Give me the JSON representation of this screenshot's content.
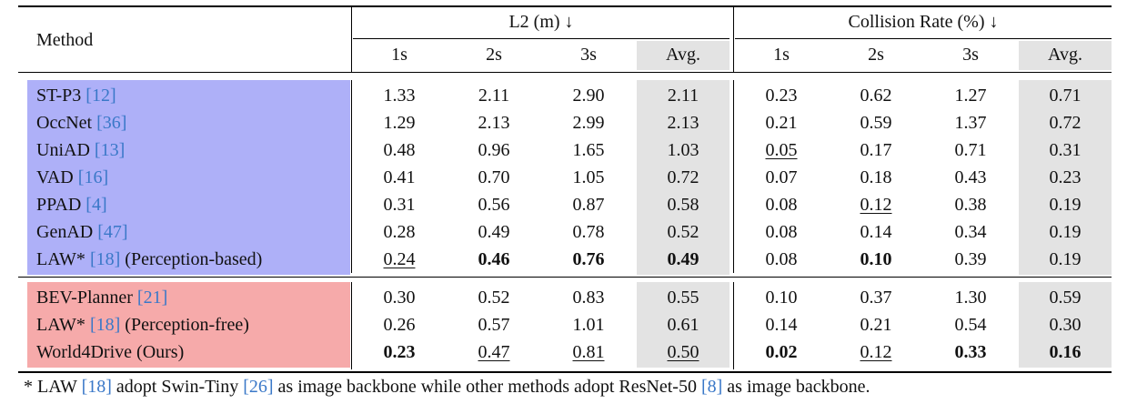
{
  "header": {
    "method_label": "Method",
    "group_l2": "L2 (m) ↓",
    "group_collision": "Collision Rate (%) ↓",
    "subcols": [
      "1s",
      "2s",
      "3s",
      "Avg.",
      "1s",
      "2s",
      "3s",
      "Avg."
    ]
  },
  "colors": {
    "perception_based_bg": "#aeb0f8",
    "perception_free_bg": "#f6aaaa",
    "avg_column_bg": "#e3e3e3",
    "citation_color": "#3a78c8"
  },
  "groups": [
    {
      "name": "perception-based",
      "rows": [
        {
          "method": "ST-P3",
          "cite": "12",
          "suffix": "",
          "values": [
            "1.33",
            "2.11",
            "2.90",
            "2.11",
            "0.23",
            "0.62",
            "1.27",
            "0.71"
          ],
          "bold": [],
          "underline": []
        },
        {
          "method": "OccNet",
          "cite": "36",
          "suffix": "",
          "values": [
            "1.29",
            "2.13",
            "2.99",
            "2.13",
            "0.21",
            "0.59",
            "1.37",
            "0.72"
          ],
          "bold": [],
          "underline": []
        },
        {
          "method": "UniAD",
          "cite": "13",
          "suffix": "",
          "values": [
            "0.48",
            "0.96",
            "1.65",
            "1.03",
            "0.05",
            "0.17",
            "0.71",
            "0.31"
          ],
          "bold": [],
          "underline": [
            4
          ]
        },
        {
          "method": "VAD",
          "cite": "16",
          "suffix": "",
          "values": [
            "0.41",
            "0.70",
            "1.05",
            "0.72",
            "0.07",
            "0.18",
            "0.43",
            "0.23"
          ],
          "bold": [],
          "underline": []
        },
        {
          "method": "PPAD",
          "cite": "4",
          "suffix": "",
          "values": [
            "0.31",
            "0.56",
            "0.87",
            "0.58",
            "0.08",
            "0.12",
            "0.38",
            "0.19"
          ],
          "bold": [],
          "underline": [
            5
          ]
        },
        {
          "method": "GenAD",
          "cite": "47",
          "suffix": "",
          "values": [
            "0.28",
            "0.49",
            "0.78",
            "0.52",
            "0.08",
            "0.14",
            "0.34",
            "0.19"
          ],
          "bold": [],
          "underline": []
        },
        {
          "method": "LAW*",
          "cite": "18",
          "suffix": " (Perception-based)",
          "values": [
            "0.24",
            "0.46",
            "0.76",
            "0.49",
            "0.08",
            "0.10",
            "0.39",
            "0.19"
          ],
          "bold": [
            1,
            2,
            3,
            5
          ],
          "underline": [
            0
          ]
        }
      ]
    },
    {
      "name": "perception-free",
      "rows": [
        {
          "method": "BEV-Planner",
          "cite": "21",
          "suffix": "",
          "values": [
            "0.30",
            "0.52",
            "0.83",
            "0.55",
            "0.10",
            "0.37",
            "1.30",
            "0.59"
          ],
          "bold": [],
          "underline": []
        },
        {
          "method": "LAW*",
          "cite": "18",
          "suffix": " (Perception-free)",
          "values": [
            "0.26",
            "0.57",
            "1.01",
            "0.61",
            "0.14",
            "0.21",
            "0.54",
            "0.30"
          ],
          "bold": [],
          "underline": []
        },
        {
          "method": "World4Drive (Ours)",
          "cite": "",
          "suffix": "",
          "values": [
            "0.23",
            "0.47",
            "0.81",
            "0.50",
            "0.02",
            "0.12",
            "0.33",
            "0.16"
          ],
          "bold": [
            0,
            4,
            6,
            7
          ],
          "underline": [
            1,
            2,
            3,
            5
          ]
        }
      ]
    }
  ],
  "footnote": {
    "prefix": "* LAW ",
    "cite1": "[18]",
    "mid1": " adopt Swin-Tiny ",
    "cite2": "[26]",
    "mid2": " as image backbone while other methods adopt ResNet-50 ",
    "cite3": "[8]",
    "end": " as image backbone."
  }
}
